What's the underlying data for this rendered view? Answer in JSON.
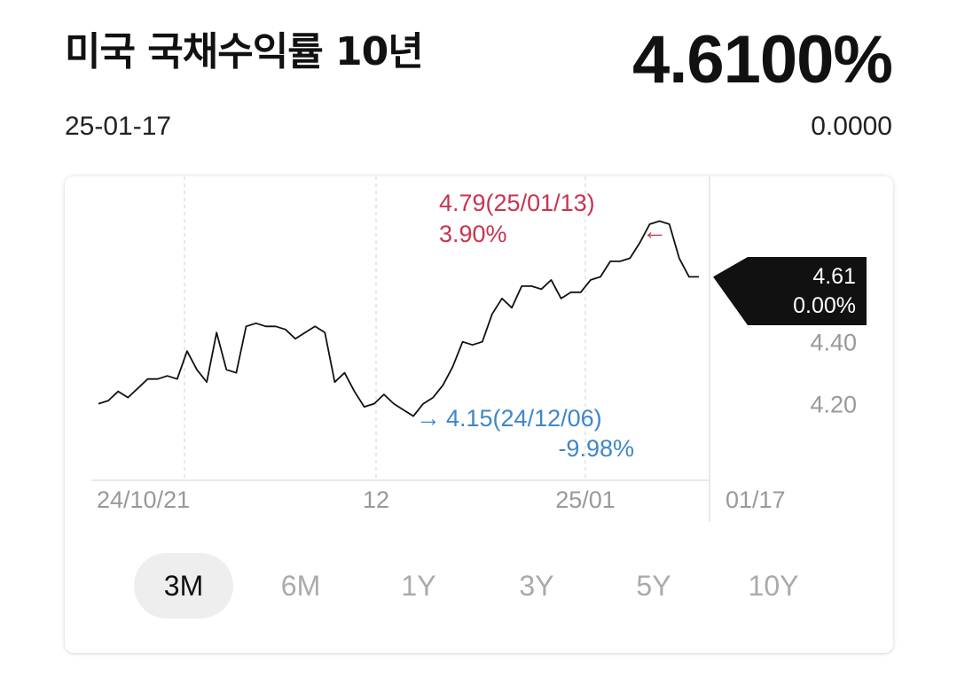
{
  "header": {
    "title": "미국 국채수익률 10년",
    "price": "4.6100%",
    "date": "25-01-17",
    "change": "0.0000"
  },
  "colors": {
    "line": "#111111",
    "high": "#c9344f",
    "low": "#3f86c9",
    "current_bg": "#111111",
    "grid": "#d8d8d8",
    "axis_text": "#999999"
  },
  "chart_data": {
    "type": "line",
    "x_ticks": [
      "24/10/21",
      "12",
      "25/01",
      "01/17"
    ],
    "y_ticks": [
      "4.40",
      "4.20"
    ],
    "ylim": [
      3.99,
      4.82
    ],
    "grid": "vertical-dashed",
    "series": [
      {
        "values": [
          4.2,
          4.21,
          4.24,
          4.22,
          4.25,
          4.28,
          4.28,
          4.29,
          4.28,
          4.37,
          4.31,
          4.27,
          4.43,
          4.31,
          4.3,
          4.45,
          4.46,
          4.45,
          4.45,
          4.44,
          4.41,
          4.43,
          4.45,
          4.43,
          4.27,
          4.3,
          4.24,
          4.19,
          4.2,
          4.23,
          4.2,
          4.18,
          4.16,
          4.2,
          4.22,
          4.26,
          4.32,
          4.4,
          4.39,
          4.4,
          4.49,
          4.54,
          4.51,
          4.58,
          4.58,
          4.57,
          4.6,
          4.54,
          4.56,
          4.56,
          4.6,
          4.61,
          4.66,
          4.66,
          4.67,
          4.72,
          4.78,
          4.79,
          4.78,
          4.67,
          4.61,
          4.61
        ]
      }
    ],
    "high": {
      "label": "4.79(25/01/13)",
      "pct": "3.90%",
      "arrow": "←"
    },
    "low": {
      "arrow": "→",
      "label": "4.15(24/12/06)",
      "pct": "-9.98%"
    },
    "current": {
      "value": "4.61",
      "pct": "0.00%"
    }
  },
  "tabs": [
    "3M",
    "6M",
    "1Y",
    "3Y",
    "5Y",
    "10Y"
  ],
  "active_tab": "3M"
}
